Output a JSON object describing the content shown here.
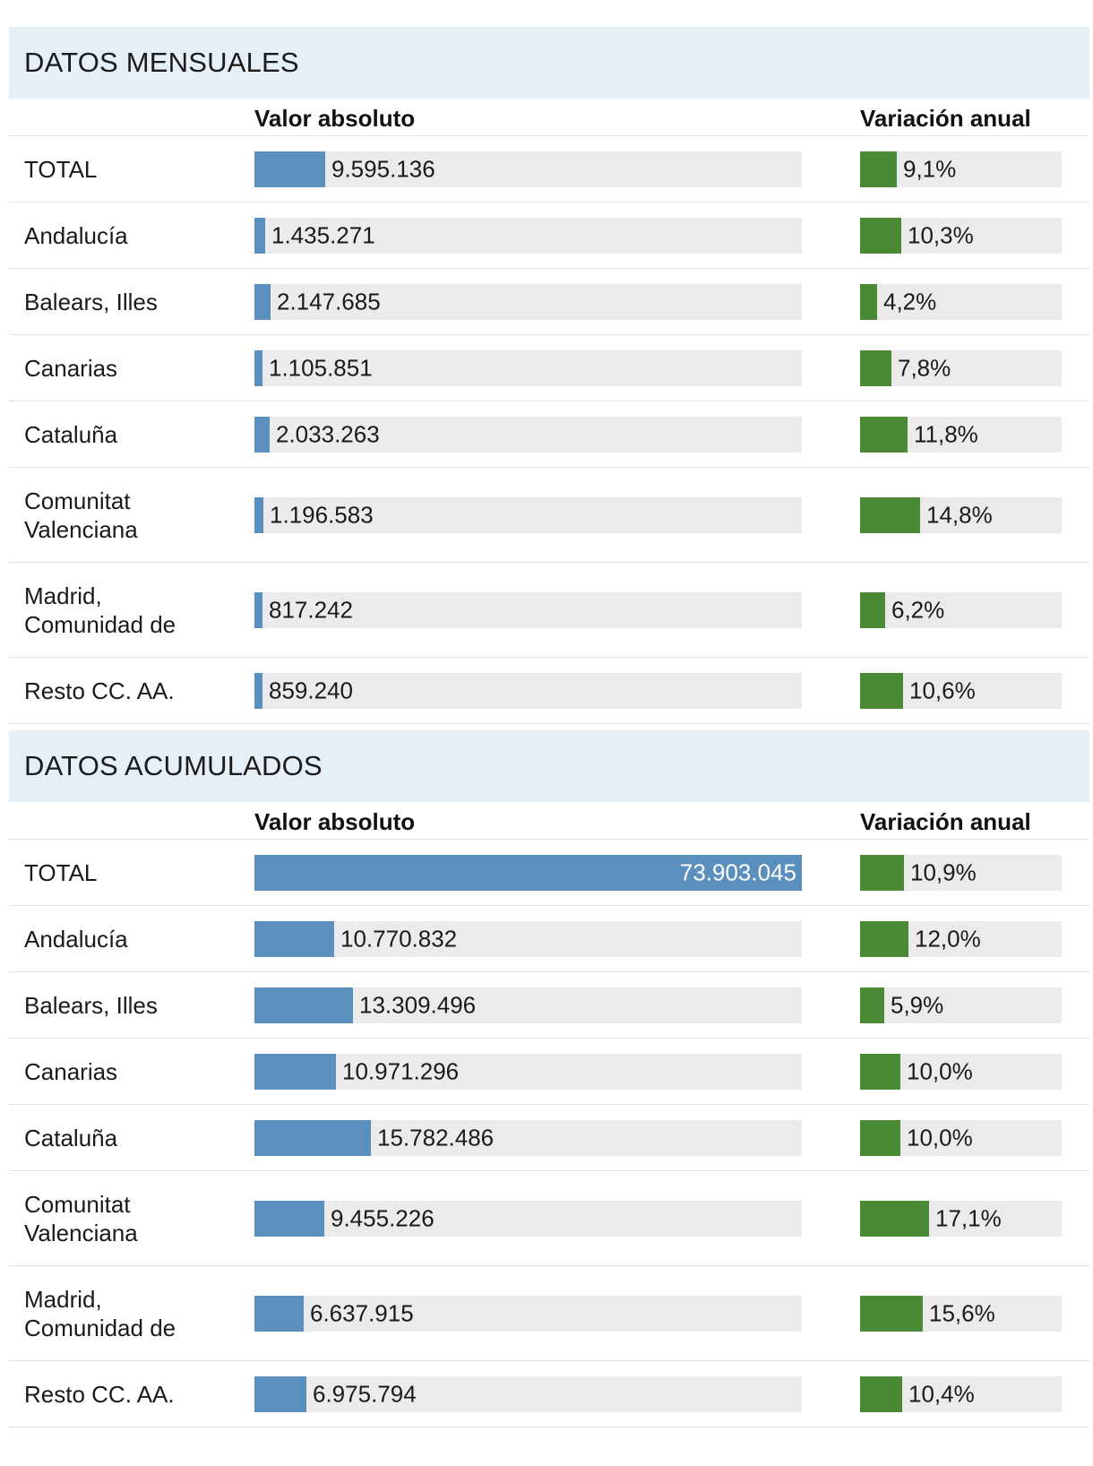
{
  "chart_data": [
    {
      "type": "bar",
      "title": "DATOS MENSUALES",
      "columns": {
        "absolute": "Valor absoluto",
        "variation": "Variación anual"
      },
      "abs_max": 73903045,
      "var_max": 50,
      "rows": [
        {
          "label": "TOTAL",
          "value": 9595136,
          "value_label": "9.595.136",
          "variation": 9.1,
          "variation_label": "9,1%"
        },
        {
          "label": "Andalucía",
          "value": 1435271,
          "value_label": "1.435.271",
          "variation": 10.3,
          "variation_label": "10,3%"
        },
        {
          "label": "Balears, Illes",
          "value": 2147685,
          "value_label": "2.147.685",
          "variation": 4.2,
          "variation_label": "4,2%"
        },
        {
          "label": "Canarias",
          "value": 1105851,
          "value_label": "1.105.851",
          "variation": 7.8,
          "variation_label": "7,8%"
        },
        {
          "label": "Cataluña",
          "value": 2033263,
          "value_label": "2.033.263",
          "variation": 11.8,
          "variation_label": "11,8%"
        },
        {
          "label": "Comunitat Valenciana",
          "value": 1196583,
          "value_label": "1.196.583",
          "variation": 14.8,
          "variation_label": "14,8%"
        },
        {
          "label": "Madrid, Comunidad de",
          "value": 817242,
          "value_label": "817.242",
          "variation": 6.2,
          "variation_label": "6,2%"
        },
        {
          "label": "Resto CC. AA.",
          "value": 859240,
          "value_label": "859.240",
          "variation": 10.6,
          "variation_label": "10,6%"
        }
      ]
    },
    {
      "type": "bar",
      "title": "DATOS ACUMULADOS",
      "columns": {
        "absolute": "Valor absoluto",
        "variation": "Variación anual"
      },
      "abs_max": 73903045,
      "var_max": 50,
      "rows": [
        {
          "label": "TOTAL",
          "value": 73903045,
          "value_label": "73.903.045",
          "variation": 10.9,
          "variation_label": "10,9%"
        },
        {
          "label": "Andalucía",
          "value": 10770832,
          "value_label": "10.770.832",
          "variation": 12.0,
          "variation_label": "12,0%"
        },
        {
          "label": "Balears, Illes",
          "value": 13309496,
          "value_label": "13.309.496",
          "variation": 5.9,
          "variation_label": "5,9%"
        },
        {
          "label": "Canarias",
          "value": 10971296,
          "value_label": "10.971.296",
          "variation": 10.0,
          "variation_label": "10,0%"
        },
        {
          "label": "Cataluña",
          "value": 15782486,
          "value_label": "15.782.486",
          "variation": 10.0,
          "variation_label": "10,0%"
        },
        {
          "label": "Comunitat Valenciana",
          "value": 9455226,
          "value_label": "9.455.226",
          "variation": 17.1,
          "variation_label": "17,1%"
        },
        {
          "label": "Madrid, Comunidad de",
          "value": 6637915,
          "value_label": "6.637.915",
          "variation": 15.6,
          "variation_label": "15,6%"
        },
        {
          "label": "Resto CC. AA.",
          "value": 6975794,
          "value_label": "6.975.794",
          "variation": 10.4,
          "variation_label": "10,4%"
        }
      ]
    }
  ]
}
